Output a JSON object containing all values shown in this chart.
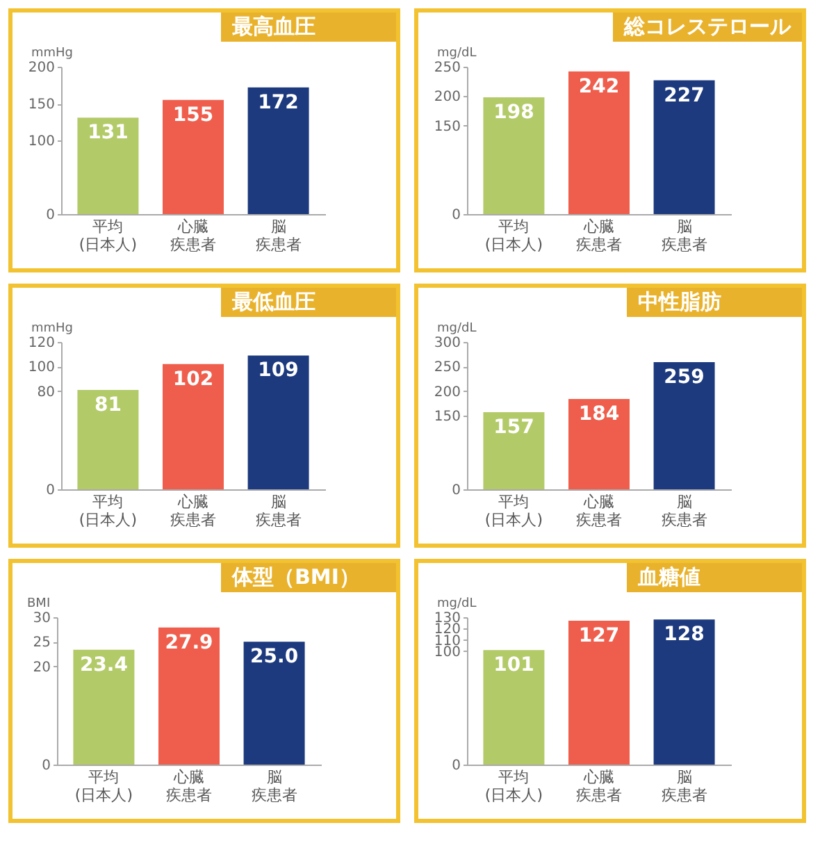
{
  "chart_data": [
    {
      "type": "bar",
      "title": "最高血圧",
      "ylabel": "mmHg",
      "categories": [
        "平均(日本人)",
        "心臓疾患者",
        "脳疾患者"
      ],
      "values": [
        131,
        155,
        172
      ],
      "colors": [
        "#b3ca68",
        "#ef5e4d",
        "#1d3a7e"
      ],
      "ylim": [
        0,
        200
      ],
      "yticks": [
        0,
        100,
        150,
        200
      ],
      "data_labels": true,
      "grid": false,
      "legend": false
    },
    {
      "type": "bar",
      "title": "総コレステロール",
      "ylabel": "mg/dL",
      "categories": [
        "平均(日本人)",
        "心臓疾患者",
        "脳疾患者"
      ],
      "values": [
        198,
        242,
        227
      ],
      "colors": [
        "#b3ca68",
        "#ef5e4d",
        "#1d3a7e"
      ],
      "ylim": [
        0,
        250
      ],
      "yticks": [
        0,
        150,
        200,
        250
      ],
      "data_labels": true,
      "grid": false,
      "legend": false
    },
    {
      "type": "bar",
      "title": "最低血圧",
      "ylabel": "mmHg",
      "categories": [
        "平均(日本人)",
        "心臓疾患者",
        "脳疾患者"
      ],
      "values": [
        81,
        102,
        109
      ],
      "colors": [
        "#b3ca68",
        "#ef5e4d",
        "#1d3a7e"
      ],
      "ylim": [
        0,
        120
      ],
      "yticks": [
        0,
        80,
        100,
        120
      ],
      "data_labels": true,
      "grid": false,
      "legend": false
    },
    {
      "type": "bar",
      "title": "中性脂肪",
      "ylabel": "mg/dL",
      "categories": [
        "平均(日本人)",
        "心臓疾患者",
        "脳疾患者"
      ],
      "values": [
        157,
        184,
        259
      ],
      "colors": [
        "#b3ca68",
        "#ef5e4d",
        "#1d3a7e"
      ],
      "ylim": [
        0,
        300
      ],
      "yticks": [
        0,
        150,
        200,
        250,
        300
      ],
      "data_labels": true,
      "grid": false,
      "legend": false
    },
    {
      "type": "bar",
      "title": "体型（BMI）",
      "ylabel": "BMI",
      "categories": [
        "平均(日本人)",
        "心臓疾患者",
        "脳疾患者"
      ],
      "values": [
        23.4,
        27.9,
        25.0
      ],
      "value_labels": [
        "23.4",
        "27.9",
        "25.0"
      ],
      "colors": [
        "#b3ca68",
        "#ef5e4d",
        "#1d3a7e"
      ],
      "ylim": [
        0,
        30
      ],
      "yticks": [
        0,
        20,
        25,
        30
      ],
      "grid": false,
      "legend": false
    },
    {
      "type": "bar",
      "title": "血糖値",
      "ylabel": "mg/dL",
      "categories": [
        "平均(日本人)",
        "心臓疾患者",
        "脳疾患者"
      ],
      "values": [
        101,
        127,
        128
      ],
      "colors": [
        "#b3ca68",
        "#ef5e4d",
        "#1d3a7e"
      ],
      "ylim": [
        0,
        130
      ],
      "yticks": [
        0,
        100,
        110,
        120,
        130
      ],
      "data_labels": true,
      "grid": false,
      "legend": false
    }
  ]
}
